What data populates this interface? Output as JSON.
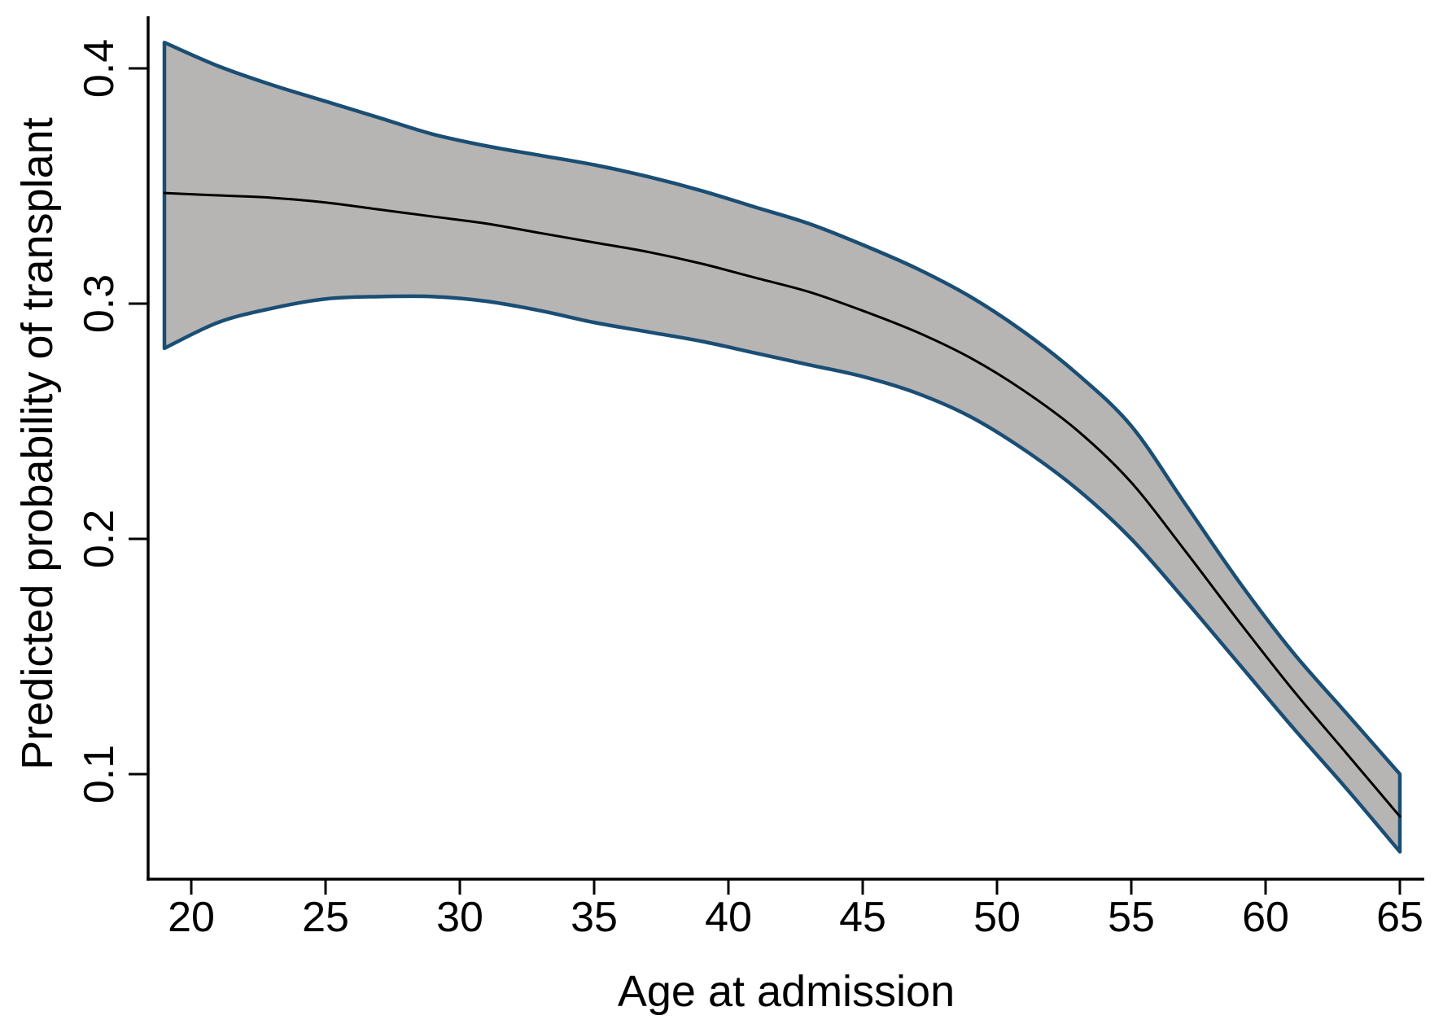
{
  "colors": {
    "background": "#ffffff",
    "axis": "#000000",
    "text": "#000000",
    "ci_edge": "#1a4e74",
    "ci_fill": "#b7b4b4",
    "mean_line": "#000000"
  },
  "chart_data": {
    "type": "line",
    "title": "",
    "xlabel": "Age at admission",
    "ylabel": "Predicted probability of transplant",
    "grid": false,
    "legend": "none",
    "xlim": [
      19,
      65
    ],
    "ylim": [
      0.055,
      0.42
    ],
    "x_tick_values": [
      20,
      25,
      30,
      35,
      40,
      45,
      50,
      55,
      60,
      65
    ],
    "x_tick_labels": [
      "20",
      "25",
      "30",
      "35",
      "40",
      "45",
      "50",
      "55",
      "60",
      "65"
    ],
    "y_tick_values": [
      0.1,
      0.2,
      0.3,
      0.4
    ],
    "y_tick_labels": [
      "0.1",
      "0.2",
      "0.3",
      "0.4"
    ],
    "x": [
      19,
      21,
      23,
      25,
      27,
      29,
      31,
      33,
      35,
      37,
      39,
      41,
      43,
      45,
      47,
      49,
      51,
      53,
      55,
      57,
      59,
      61,
      63,
      65
    ],
    "series": [
      {
        "name": "upper-95-ci",
        "role": "band-upper",
        "color": "#1a4e74",
        "values": [
          0.411,
          0.401,
          0.393,
          0.386,
          0.379,
          0.372,
          0.367,
          0.363,
          0.359,
          0.354,
          0.348,
          0.341,
          0.334,
          0.325,
          0.315,
          0.303,
          0.288,
          0.27,
          0.248,
          0.215,
          0.182,
          0.152,
          0.126,
          0.1
        ]
      },
      {
        "name": "predicted-probability",
        "role": "mean-line",
        "color": "#000000",
        "values": [
          0.347,
          0.346,
          0.345,
          0.343,
          0.34,
          0.337,
          0.334,
          0.33,
          0.326,
          0.322,
          0.317,
          0.311,
          0.305,
          0.297,
          0.288,
          0.277,
          0.263,
          0.246,
          0.224,
          0.195,
          0.165,
          0.136,
          0.109,
          0.082
        ]
      },
      {
        "name": "lower-95-ci",
        "role": "band-lower",
        "color": "#1a4e74",
        "values": [
          0.281,
          0.292,
          0.298,
          0.302,
          0.303,
          0.303,
          0.301,
          0.297,
          0.292,
          0.288,
          0.284,
          0.279,
          0.274,
          0.269,
          0.262,
          0.252,
          0.238,
          0.221,
          0.2,
          0.174,
          0.147,
          0.12,
          0.094,
          0.067
        ]
      }
    ],
    "band_fill": "#b7b4b4",
    "band_edge": "#1a4e74"
  }
}
